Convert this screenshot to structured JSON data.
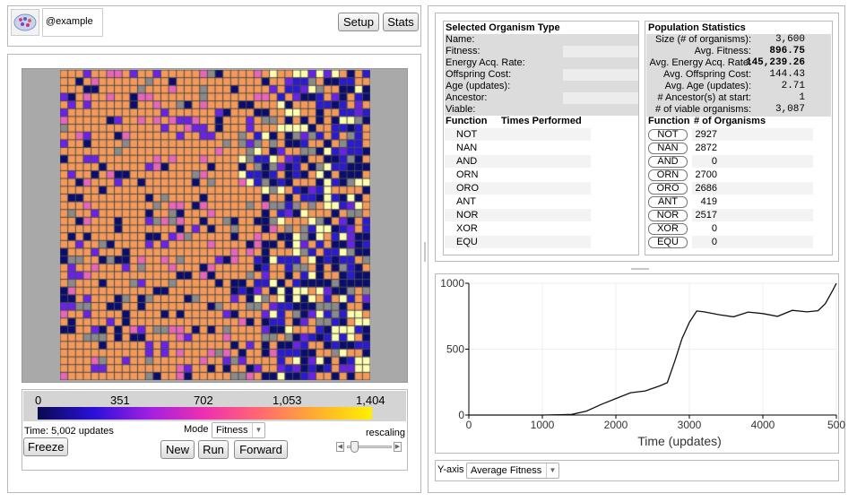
{
  "header": {
    "user": "@example",
    "setup_label": "Setup",
    "stats_label": "Stats"
  },
  "grid": {
    "cols": 40,
    "rows": 40
  },
  "legend": {
    "ticks": [
      "0",
      "351",
      "702",
      "1,053",
      "1,404"
    ]
  },
  "controls": {
    "time_text": "Time: 5,002 updates",
    "mode_label": "Mode",
    "mode_value": "Fitness",
    "freeze": "Freeze",
    "new": "New",
    "run": "Run",
    "forward": "Forward",
    "rescaling": "rescaling"
  },
  "selected": {
    "title": "Selected Organism Type",
    "fields": [
      "Name:",
      "Fitness:",
      "Energy Acq. Rate:",
      "Offspring Cost:",
      "Age (updates):",
      "Ancestor:",
      "Viable:"
    ],
    "func_header": "Function",
    "times_header": "Times Performed",
    "functions": [
      "NOT",
      "NAN",
      "AND",
      "ORN",
      "ORO",
      "ANT",
      "NOR",
      "XOR",
      "EQU"
    ]
  },
  "population": {
    "title": "Population Statistics",
    "stats": [
      {
        "label": "Size (# of organisms):",
        "value": "3,600",
        "bold": false
      },
      {
        "label": "Avg. Fitness:",
        "value": "896.75",
        "bold": true
      },
      {
        "label": "Avg. Energy Acq. Rate:",
        "value": "145,239.26",
        "bold": true
      },
      {
        "label": "Avg. Offspring Cost:",
        "value": "144.43",
        "bold": false
      },
      {
        "label": "Avg. Age (updates):",
        "value": "2.71",
        "bold": false
      },
      {
        "label": "# Ancestor(s) at start:",
        "value": "1",
        "bold": false
      },
      {
        "label": "# of viable organisms:",
        "value": "3,087",
        "bold": false
      }
    ],
    "func_header": "Function",
    "count_header": "# of Organisms",
    "functions": [
      {
        "name": "NOT",
        "count": "2927"
      },
      {
        "name": "NAN",
        "count": "2872"
      },
      {
        "name": "AND",
        "count": "0"
      },
      {
        "name": "ORN",
        "count": "2700"
      },
      {
        "name": "ORO",
        "count": "2686"
      },
      {
        "name": "ANT",
        "count": "419"
      },
      {
        "name": "NOR",
        "count": "2517"
      },
      {
        "name": "XOR",
        "count": "0"
      },
      {
        "name": "EQU",
        "count": "0"
      }
    ]
  },
  "chart_data": {
    "type": "line",
    "xlabel": "Time (updates)",
    "ylabel": "",
    "xlim": [
      0,
      5000
    ],
    "ylim": [
      0,
      1000
    ],
    "xticks": [
      "0",
      "1000",
      "2000",
      "3000",
      "4000",
      "500"
    ],
    "yticks": [
      "0",
      "500",
      "1000"
    ],
    "series": [
      {
        "x": [
          0,
          500,
          1000,
          1400,
          1600,
          1800,
          2000,
          2200,
          2400,
          2600,
          2700,
          2800,
          2900,
          3000,
          3100,
          3200,
          3400,
          3600,
          3800,
          4000,
          4200,
          4400,
          4600,
          4750,
          4850,
          4950,
          5000
        ],
        "y": [
          0,
          0,
          0,
          5,
          30,
          80,
          125,
          145,
          175,
          230,
          270,
          390,
          580,
          720,
          765,
          775,
          770,
          770,
          765,
          770,
          765,
          770,
          775,
          800,
          870,
          930,
          1000
        ]
      }
    ]
  },
  "yaxis": {
    "label": "Y-axis",
    "value": "Average Fitness"
  }
}
